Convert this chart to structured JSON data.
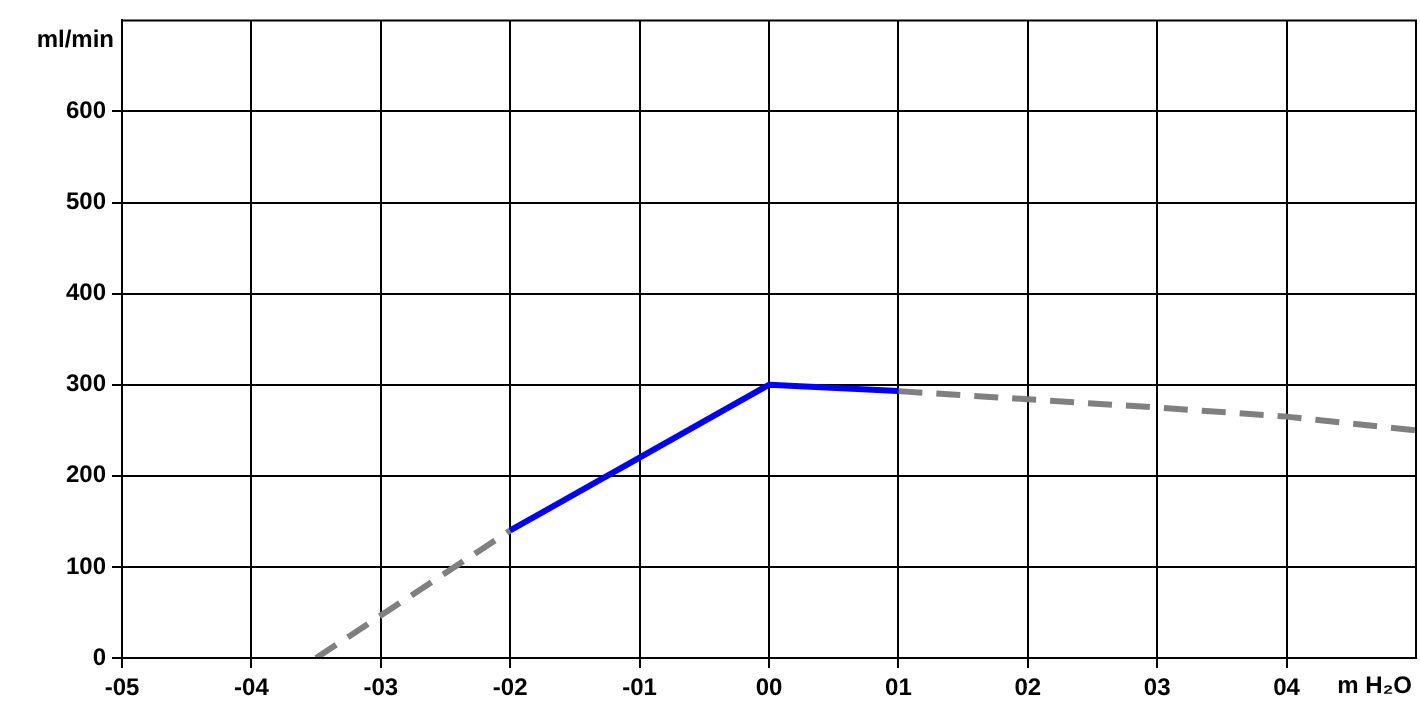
{
  "chart_data": {
    "type": "line",
    "xlabel": "m H₂O",
    "ylabel": "ml/min",
    "xlim": [
      -5,
      5
    ],
    "ylim": [
      0,
      700
    ],
    "xticks": [
      {
        "value": -5,
        "label": "-05"
      },
      {
        "value": -4,
        "label": "-04"
      },
      {
        "value": -3,
        "label": "-03"
      },
      {
        "value": -2,
        "label": "-02"
      },
      {
        "value": -1,
        "label": "-01"
      },
      {
        "value": 0,
        "label": "00"
      },
      {
        "value": 1,
        "label": "01"
      },
      {
        "value": 2,
        "label": "02"
      },
      {
        "value": 3,
        "label": "03"
      },
      {
        "value": 4,
        "label": "04"
      }
    ],
    "yticks": [
      0,
      100,
      200,
      300,
      400,
      500,
      600
    ],
    "grid": true,
    "legend": false,
    "marker": "none",
    "series": [
      {
        "color": "#0000ff",
        "line_style": "solid",
        "x": [
          -2,
          0,
          1
        ],
        "values": [
          140,
          300,
          293
        ]
      },
      {
        "color": "#808080",
        "line_style": "dashed",
        "x": [
          -3.5,
          -2,
          0,
          1,
          2,
          3,
          4,
          5
        ],
        "values": [
          0,
          140,
          null,
          293,
          284,
          275,
          265,
          250
        ]
      }
    ]
  }
}
